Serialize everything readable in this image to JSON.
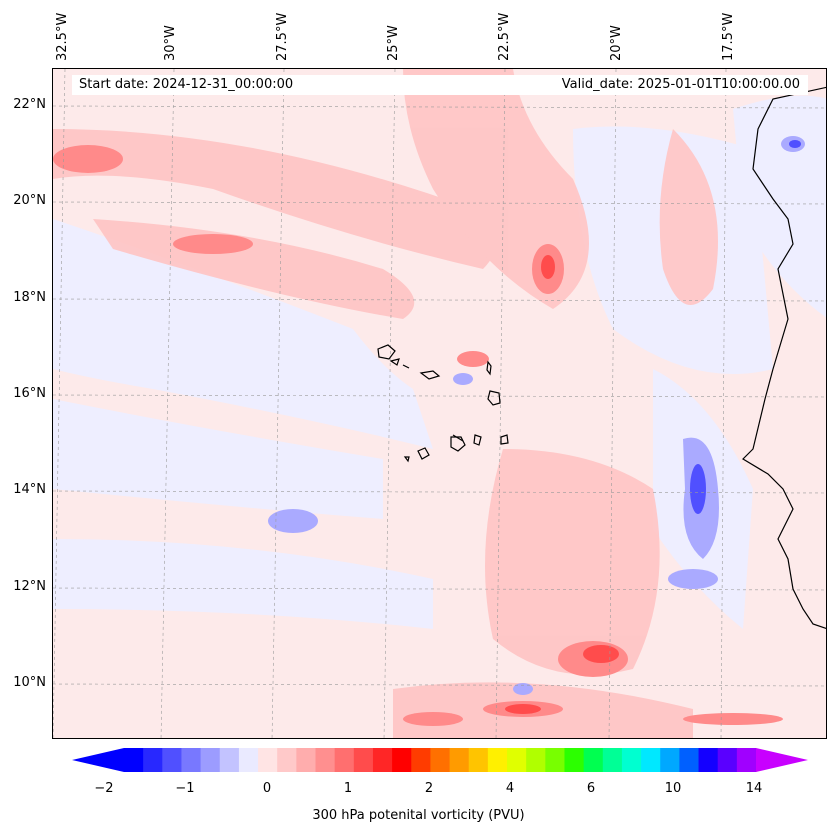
{
  "map": {
    "variable_label": "300 hPa potenital vorticity (PVU)",
    "start_date": "Start date: 2024-12-31_00:00:00",
    "valid_date": "Valid_date: 2025-01-01T10:00:00.00",
    "lon_labels": [
      "32.5°W",
      "30°W",
      "27.5°W",
      "25°W",
      "22.5°W",
      "20°W",
      "17.5°W"
    ],
    "lat_labels": [
      "22°N",
      "20°N",
      "18°N",
      "16°N",
      "14°N",
      "12°N",
      "10°N"
    ],
    "extent": {
      "lon_min": -33,
      "lon_max": -15.5,
      "lat_min": 8.9,
      "lat_max": 22.8
    },
    "region": "Cape Verde Islands and West African coast",
    "colorbar": {
      "ticks": [
        "−2",
        "−1",
        "0",
        "1",
        "2",
        "4",
        "6",
        "10",
        "14"
      ],
      "colors": [
        "#0000ff",
        "#2828ff",
        "#5050ff",
        "#7878ff",
        "#9c9cff",
        "#c3c3ff",
        "#eaeaff",
        "#ffe4e4",
        "#ffc9c9",
        "#ffadad",
        "#ff8f8f",
        "#ff6f6f",
        "#ff4c4c",
        "#ff2626",
        "#ff0000",
        "#ff3c00",
        "#ff7000",
        "#ff9b00",
        "#ffc400",
        "#fff000",
        "#e0ff00",
        "#b0ff00",
        "#78ff00",
        "#2cff00",
        "#00ff50",
        "#00ff96",
        "#00ffd0",
        "#00e8ff",
        "#00a8ff",
        "#0060ff",
        "#1400ff",
        "#5a00ff",
        "#a000ff"
      ],
      "extend_min_color": "#0000ff",
      "extend_max_color": "#c800ff"
    }
  }
}
